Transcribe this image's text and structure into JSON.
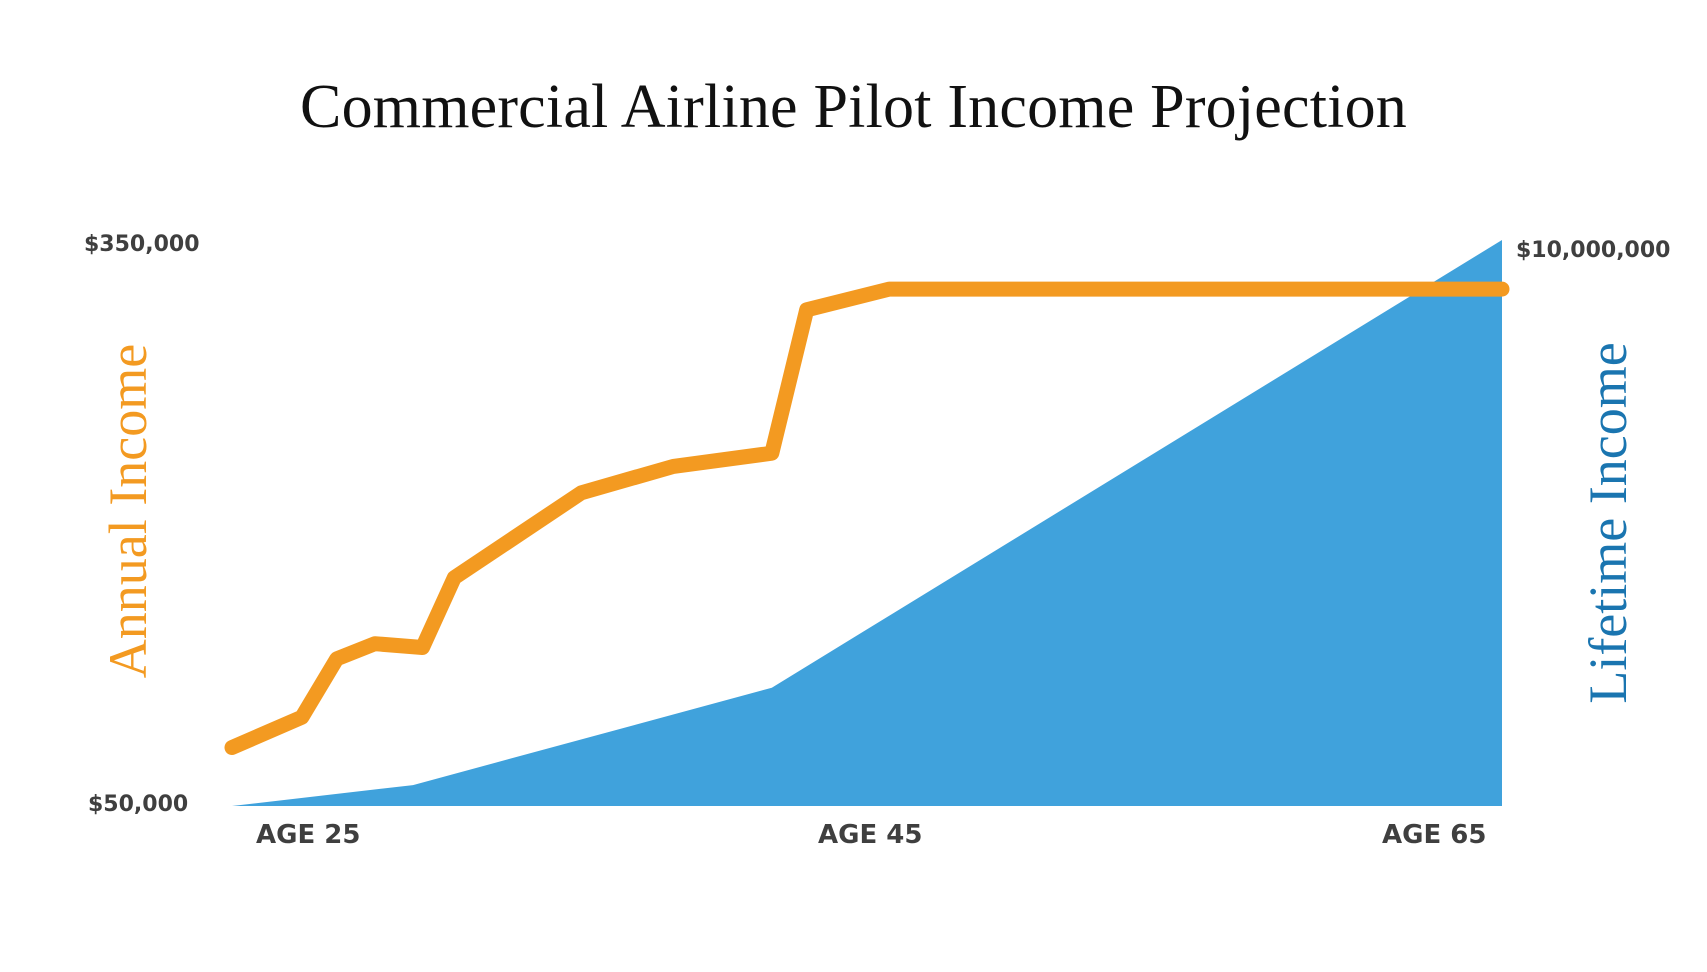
{
  "title": "Commercial Airline Pilot Income Projection",
  "colors": {
    "annual_line": "#f39a21",
    "lifetime_area": "#40a2dc",
    "annual_title": "#f39a21",
    "lifetime_title": "#1a75b0",
    "tick_text": "#3f3f3f"
  },
  "axes": {
    "left_title": "Annual Income",
    "right_title": "Lifetime Income",
    "left_ticks": {
      "top": "$350,000",
      "bottom": "$50,000"
    },
    "right_ticks": {
      "top": "$10,000,000"
    },
    "x_ticks": [
      "AGE 25",
      "AGE 45",
      "AGE 65"
    ]
  },
  "chart_data": {
    "type": "line",
    "title": "Commercial Airline Pilot Income Projection",
    "xlabel": "Age",
    "ylabel": "Annual Income",
    "y2label": "Lifetime Income",
    "x_ticks": [
      "AGE 25",
      "AGE 45",
      "AGE 65"
    ],
    "xlim": [
      25,
      65
    ],
    "ylim": [
      50000,
      350000
    ],
    "y2lim": [
      0,
      10000000
    ],
    "grid": false,
    "legend": "none (axis titles colored by series)",
    "series": [
      {
        "name": "Annual Income",
        "type": "line",
        "axis": "left",
        "color": "#f39a21",
        "x": [
          25,
          27.2,
          28.3,
          29.5,
          31,
          32,
          36,
          38.9,
          42,
          43.1,
          45.7,
          65
        ],
        "values": [
          81000,
          97000,
          128000,
          136000,
          134000,
          171000,
          216000,
          230000,
          237000,
          313000,
          324000,
          324000
        ]
      },
      {
        "name": "Lifetime Income",
        "type": "area",
        "axis": "right",
        "color": "#40a2dc",
        "x": [
          25,
          30.7,
          42,
          65
        ],
        "values": [
          0,
          370000,
          2090000,
          10000000
        ]
      }
    ]
  }
}
